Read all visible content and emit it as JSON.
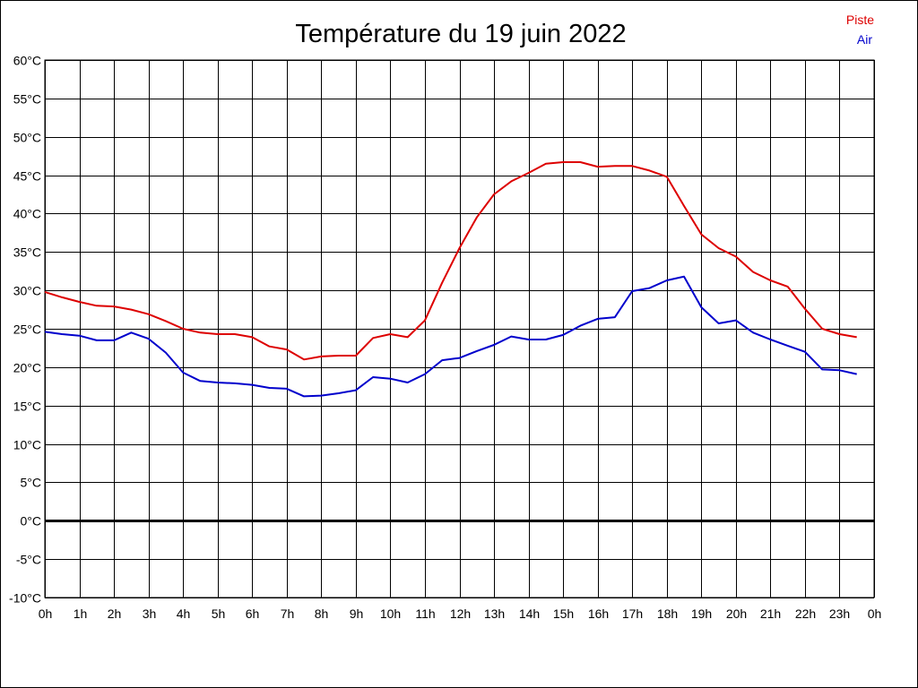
{
  "chart_data": {
    "type": "line",
    "title": "Température du 19 juin 2022",
    "xlabel": "",
    "ylabel": "",
    "x_unit_hours": true,
    "xlim": [
      0,
      24
    ],
    "ylim": [
      -10,
      60
    ],
    "y_step": 5,
    "y_ticks": [
      "-10°C",
      "-5°C",
      "0°C",
      "5°C",
      "10°C",
      "15°C",
      "20°C",
      "25°C",
      "30°C",
      "35°C",
      "40°C",
      "45°C",
      "50°C",
      "55°C",
      "60°C"
    ],
    "x_ticks": [
      "0h",
      "1h",
      "2h",
      "3h",
      "4h",
      "5h",
      "6h",
      "7h",
      "8h",
      "9h",
      "10h",
      "11h",
      "12h",
      "13h",
      "14h",
      "15h",
      "16h",
      "17h",
      "18h",
      "19h",
      "20h",
      "21h",
      "22h",
      "23h",
      "0h"
    ],
    "grid": true,
    "zero_line": true,
    "legend_position": "top-right",
    "x": [
      0,
      0.5,
      1,
      1.5,
      2,
      2.5,
      3,
      3.5,
      4,
      4.5,
      5,
      5.5,
      6,
      6.5,
      7,
      7.5,
      8,
      8.5,
      9,
      9.5,
      10,
      10.5,
      11,
      11.5,
      12,
      12.5,
      13,
      13.5,
      14,
      14.5,
      15,
      15.5,
      16,
      16.5,
      17,
      17.5,
      18,
      18.5,
      19,
      19.5,
      20,
      20.5,
      21,
      21.5,
      22,
      22.5,
      23,
      23.5
    ],
    "series": [
      {
        "name": "Piste",
        "color": "#dd0000",
        "values": [
          29.8,
          29.1,
          28.5,
          28.0,
          27.9,
          27.5,
          26.9,
          26.0,
          25.0,
          24.5,
          24.3,
          24.3,
          23.9,
          22.7,
          22.3,
          21.0,
          21.4,
          21.5,
          21.5,
          23.8,
          24.3,
          23.9,
          26.1,
          31.0,
          35.5,
          39.5,
          42.5,
          44.2,
          45.3,
          46.5,
          46.7,
          46.7,
          46.1,
          46.2,
          46.2,
          45.6,
          44.8,
          41.0,
          37.3,
          35.5,
          34.4,
          32.4,
          31.3,
          30.5,
          27.6,
          25.0,
          24.3,
          23.9
        ]
      },
      {
        "name": "Air",
        "color": "#0000cc",
        "values": [
          24.6,
          24.3,
          24.1,
          23.5,
          23.5,
          24.5,
          23.7,
          21.9,
          19.3,
          18.2,
          18.0,
          17.9,
          17.7,
          17.3,
          17.2,
          16.2,
          16.3,
          16.6,
          17.0,
          18.7,
          18.5,
          18.0,
          19.1,
          20.9,
          21.2,
          22.1,
          22.9,
          24.0,
          23.6,
          23.6,
          24.2,
          25.4,
          26.3,
          26.5,
          29.9,
          30.3,
          31.3,
          31.8,
          27.8,
          25.7,
          26.1,
          24.5,
          23.6,
          22.8,
          22.0,
          19.7,
          19.6,
          19.1
        ]
      }
    ],
    "colors": {
      "grid": "#000000",
      "zero_line": "#000000",
      "background": "#ffffff"
    }
  }
}
